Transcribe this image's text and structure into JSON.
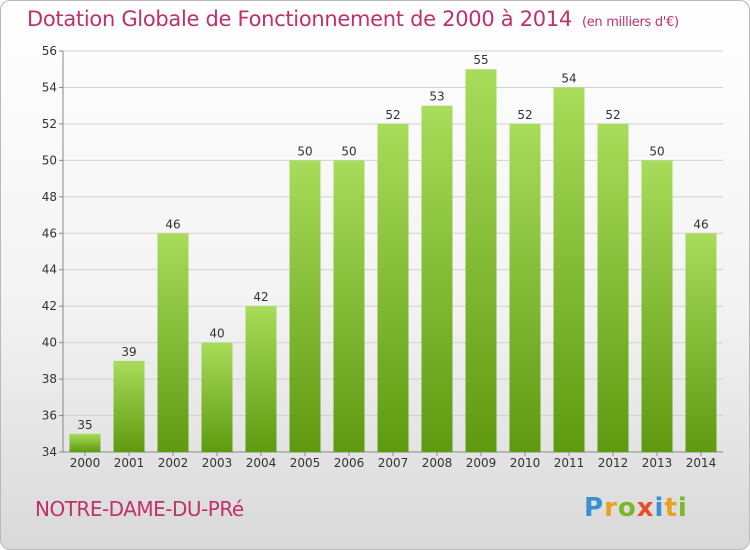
{
  "header": {
    "title": "Dotation Globale de Fonctionnement de 2000 à 2014",
    "unit_note": "(en milliers d'€)"
  },
  "footer": {
    "commune": "NOTRE-DAME-DU-PRé",
    "brand": "Proxiti"
  },
  "colors": {
    "title": "#c0306b",
    "bar_light": "#a8dc5a",
    "bar_dark": "#5e9a10"
  },
  "chart_data": {
    "type": "bar",
    "categories": [
      "2000",
      "2001",
      "2002",
      "2003",
      "2004",
      "2005",
      "2006",
      "2007",
      "2008",
      "2009",
      "2010",
      "2011",
      "2012",
      "2013",
      "2014"
    ],
    "values": [
      35,
      39,
      46,
      40,
      42,
      50,
      50,
      52,
      53,
      55,
      52,
      54,
      52,
      50,
      46
    ],
    "title": "Dotation Globale de Fonctionnement de 2000 à 2014",
    "subtitle": "(en milliers d'€)",
    "xlabel": "",
    "ylabel": "",
    "ylim": [
      34,
      56
    ],
    "yticks": [
      34,
      36,
      38,
      40,
      42,
      44,
      46,
      48,
      50,
      52,
      54,
      56
    ],
    "grid": true,
    "legend": "none"
  }
}
